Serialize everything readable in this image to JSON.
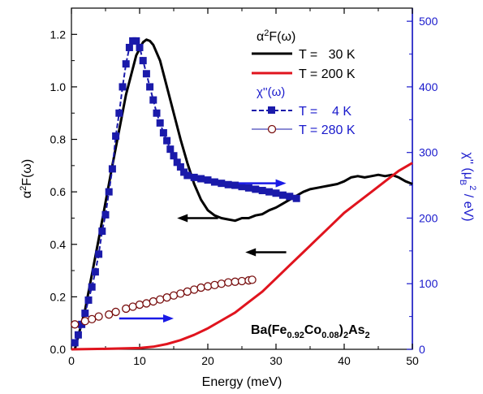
{
  "chart_data": {
    "type": "line",
    "xlabel": "Energy (meV)",
    "xlim": [
      0,
      50
    ],
    "x_ticks": [
      "0",
      "10",
      "20",
      "30",
      "40",
      "50"
    ],
    "y_left": {
      "label_main": "α",
      "label_sup": "2",
      "label_tail": "F(ω)",
      "ylim": [
        0,
        1.3
      ],
      "ticks": [
        "0.0",
        "0.2",
        "0.4",
        "0.6",
        "0.8",
        "1.0",
        "1.2"
      ]
    },
    "y_right": {
      "label_main": "χ'' (μ",
      "label_sub": "B",
      "label_sup": "2",
      "label_tail": " / eV)",
      "ylim": [
        0,
        520
      ],
      "ticks": [
        "0",
        "100",
        "200",
        "300",
        "400",
        "500"
      ],
      "color": "#1a1acc"
    },
    "legend": {
      "group1_title_main": "α",
      "group1_title_sup": "2",
      "group1_title_tail": "F(ω)",
      "group2_title": "χ''(ω)"
    },
    "compound_label": {
      "a": "Ba(Fe",
      "b": "0.92",
      "c": "Co",
      "d": "0.08",
      "e": ")",
      "f": "2",
      "g": "As",
      "h": "2"
    },
    "series": [
      {
        "name": "T =   30 K",
        "axis": "left",
        "color": "#000000",
        "style": "solid-thick",
        "x": [
          0.5,
          2,
          4,
          6,
          8,
          9.5,
          10.5,
          11,
          11.5,
          12,
          13,
          14,
          15,
          16,
          17,
          18,
          19,
          20,
          21,
          22,
          23,
          24,
          25,
          26,
          27,
          28,
          29,
          30,
          31,
          32,
          33,
          34,
          35,
          36,
          37,
          38,
          39,
          40,
          41,
          42,
          43,
          44,
          45,
          46,
          47,
          48,
          49,
          50
        ],
        "y": [
          0.0,
          0.15,
          0.42,
          0.7,
          0.97,
          1.12,
          1.17,
          1.18,
          1.175,
          1.16,
          1.1,
          1.0,
          0.9,
          0.8,
          0.71,
          0.63,
          0.57,
          0.53,
          0.51,
          0.5,
          0.495,
          0.49,
          0.5,
          0.5,
          0.51,
          0.515,
          0.53,
          0.54,
          0.555,
          0.57,
          0.585,
          0.6,
          0.61,
          0.615,
          0.62,
          0.625,
          0.63,
          0.64,
          0.655,
          0.66,
          0.655,
          0.66,
          0.665,
          0.66,
          0.665,
          0.655,
          0.64,
          0.63
        ]
      },
      {
        "name": "T = 200 K",
        "axis": "left",
        "color": "#e0141e",
        "style": "solid-thick",
        "x": [
          0,
          5,
          10,
          12,
          14,
          16,
          18,
          20,
          22,
          24,
          26,
          28,
          30,
          32,
          34,
          36,
          38,
          40,
          42,
          44,
          46,
          48,
          50
        ],
        "y": [
          0.0,
          0.002,
          0.005,
          0.01,
          0.02,
          0.035,
          0.055,
          0.08,
          0.11,
          0.14,
          0.18,
          0.22,
          0.27,
          0.32,
          0.37,
          0.42,
          0.47,
          0.52,
          0.56,
          0.6,
          0.64,
          0.68,
          0.71
        ]
      },
      {
        "name": "T =    4 K",
        "axis": "right",
        "color": "#1a1aaa",
        "style": "dash-square",
        "x": [
          0.5,
          1.0,
          1.5,
          2.0,
          2.5,
          3.0,
          3.5,
          4.0,
          4.5,
          5.0,
          5.5,
          6.0,
          6.5,
          7.0,
          7.5,
          8.0,
          8.5,
          9.0,
          9.5,
          10.0,
          10.5,
          11.0,
          11.5,
          12.0,
          12.5,
          13.0,
          13.5,
          14.0,
          14.5,
          15.0,
          15.5,
          16.0,
          16.5,
          17.0,
          18.0,
          19.0,
          20.0,
          21.0,
          22.0,
          23.0,
          24.0,
          25.0,
          26.0,
          27.0,
          28.0,
          29.0,
          30.0,
          31.0,
          32.0,
          33.0
        ],
        "y": [
          10,
          22,
          38,
          55,
          75,
          95,
          118,
          145,
          180,
          205,
          240,
          275,
          325,
          360,
          400,
          435,
          460,
          470,
          470,
          460,
          440,
          420,
          400,
          380,
          360,
          345,
          330,
          318,
          305,
          295,
          285,
          278,
          270,
          265,
          262,
          260,
          258,
          255,
          253,
          251,
          250,
          248,
          246,
          244,
          242,
          240,
          238,
          235,
          233,
          230
        ]
      },
      {
        "name": "T = 280 K",
        "axis": "right",
        "color": "#7a1010",
        "style": "thin-circle",
        "x": [
          0.5,
          2.0,
          3.0,
          4.0,
          5.5,
          6.5,
          8.0,
          9.0,
          10.0,
          11.0,
          12.0,
          13.0,
          14.0,
          15.0,
          16.0,
          17.0,
          18.0,
          19.0,
          20.0,
          21.0,
          22.0,
          23.0,
          24.0,
          25.0,
          26.0,
          26.5
        ],
        "y": [
          38,
          43,
          46,
          50,
          53,
          57,
          62,
          65,
          68,
          70,
          73,
          76,
          79,
          82,
          85,
          88,
          91,
          94,
          96,
          98,
          100,
          102,
          103,
          104,
          105,
          106
        ]
      }
    ],
    "annotations": [
      {
        "kind": "arrow-left",
        "color": "#000000",
        "x_from": 21.5,
        "x_to": 15.5,
        "y": 0.5,
        "axis": "left"
      },
      {
        "kind": "arrow-left",
        "color": "#000000",
        "x_from": 31.5,
        "x_to": 25.5,
        "y": 0.37,
        "axis": "left"
      },
      {
        "kind": "arrow-right",
        "color": "#1a1ae6",
        "x_from": 24.5,
        "x_to": 31.5,
        "y": 253,
        "axis": "right"
      },
      {
        "kind": "arrow-right",
        "color": "#1a1ae6",
        "x_from": 7.0,
        "x_to": 15.0,
        "y": 47,
        "axis": "right"
      }
    ]
  }
}
